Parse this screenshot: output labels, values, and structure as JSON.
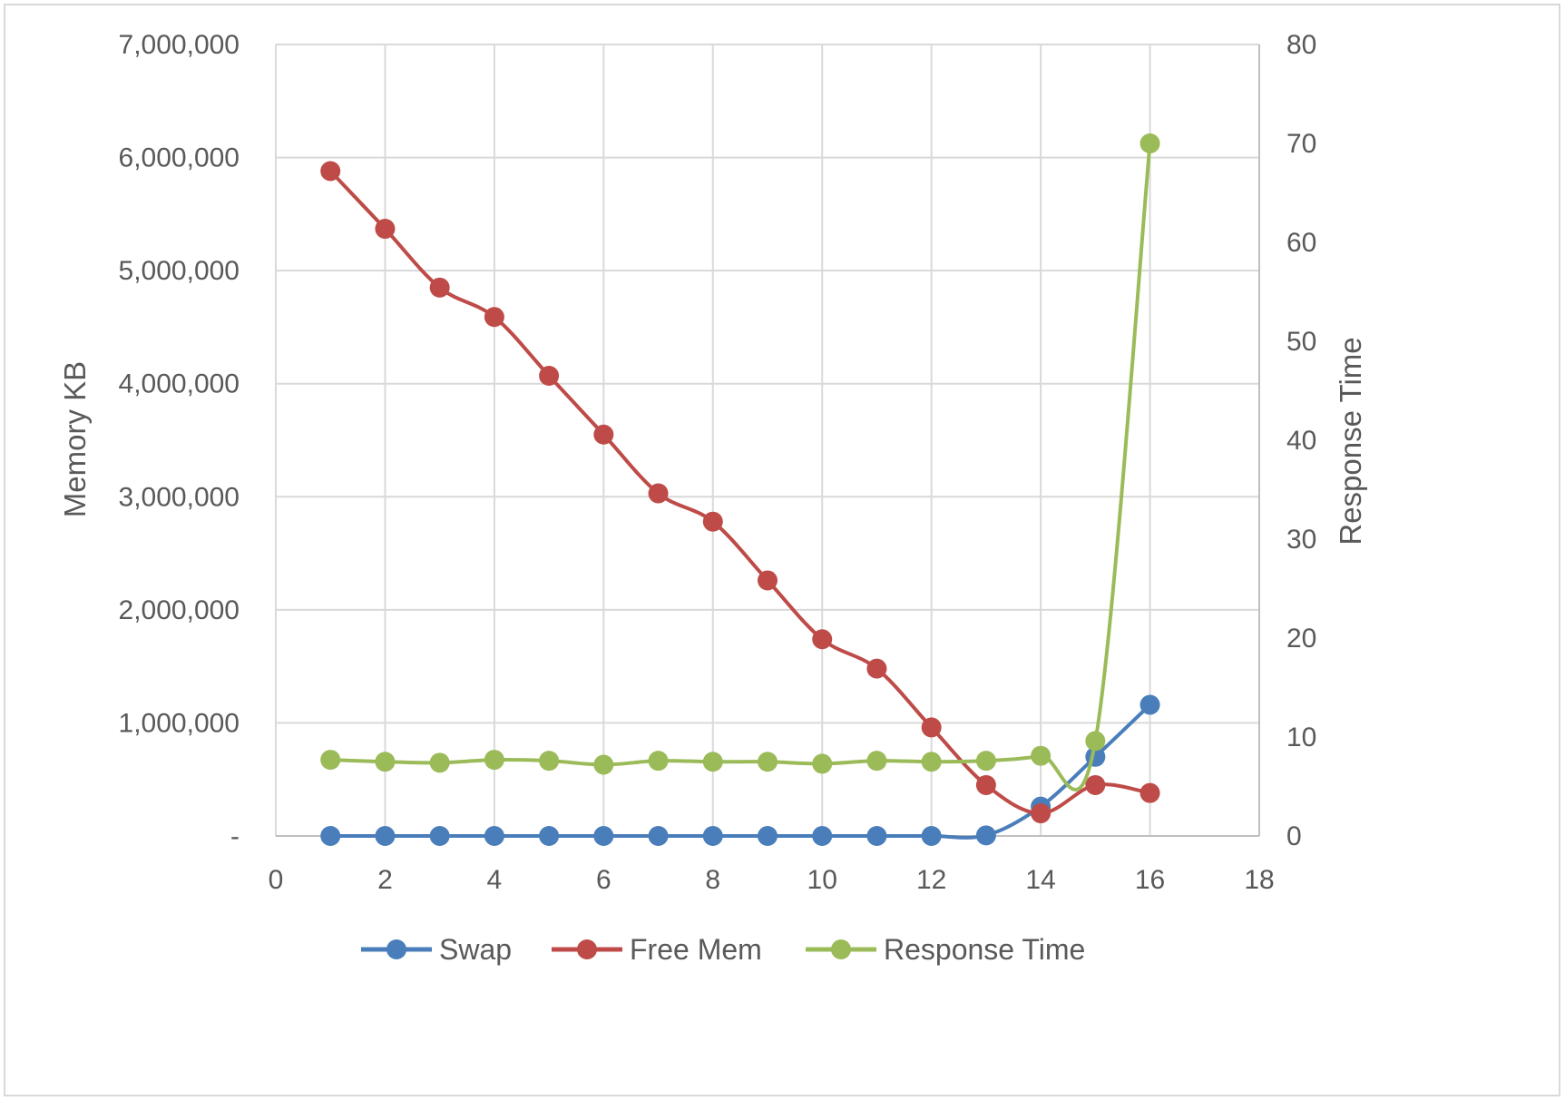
{
  "chart_data": {
    "type": "line",
    "title": "",
    "xlabel": "",
    "ylabel": "Memory KB",
    "y2label": "Response Time",
    "xlim": [
      0,
      18
    ],
    "ylim": [
      0,
      7000000
    ],
    "y2lim": [
      0,
      80
    ],
    "x_ticks": [
      "0",
      "2",
      "4",
      "6",
      "8",
      "10",
      "12",
      "14",
      "16",
      "18"
    ],
    "y_ticks": [
      "-",
      "1,000,000",
      "2,000,000",
      "3,000,000",
      "4,000,000",
      "5,000,000",
      "6,000,000",
      "7,000,000"
    ],
    "y2_ticks": [
      "0",
      "10",
      "20",
      "30",
      "40",
      "50",
      "60",
      "70",
      "80"
    ],
    "grid": true,
    "legend_position": "bottom",
    "series": [
      {
        "name": "Swap",
        "axis": "left",
        "color": "#4a7ebb",
        "x": [
          1,
          2,
          3,
          4,
          5,
          6,
          7,
          8,
          9,
          10,
          11,
          12,
          13,
          14,
          15,
          16
        ],
        "values": [
          0,
          0,
          0,
          0,
          0,
          0,
          0,
          0,
          0,
          0,
          0,
          0,
          5000,
          260000,
          700000,
          1160000
        ]
      },
      {
        "name": "Free Mem",
        "axis": "left",
        "color": "#be4b48",
        "x": [
          1,
          2,
          3,
          4,
          5,
          6,
          7,
          8,
          9,
          10,
          11,
          12,
          13,
          14,
          15,
          16
        ],
        "values": [
          5880000,
          5370000,
          4850000,
          4590000,
          4070000,
          3550000,
          3030000,
          2780000,
          2260000,
          1740000,
          1480000,
          960000,
          450000,
          200000,
          450000,
          380000
        ]
      },
      {
        "name": "Response Time",
        "axis": "right",
        "color": "#9bbb59",
        "x": [
          1,
          2,
          3,
          4,
          5,
          6,
          7,
          8,
          9,
          10,
          11,
          12,
          13,
          14,
          15,
          16
        ],
        "values": [
          7.7,
          7.5,
          7.4,
          7.7,
          7.6,
          7.2,
          7.6,
          7.5,
          7.5,
          7.3,
          7.6,
          7.5,
          7.6,
          8.1,
          9.6,
          70
        ]
      }
    ]
  }
}
